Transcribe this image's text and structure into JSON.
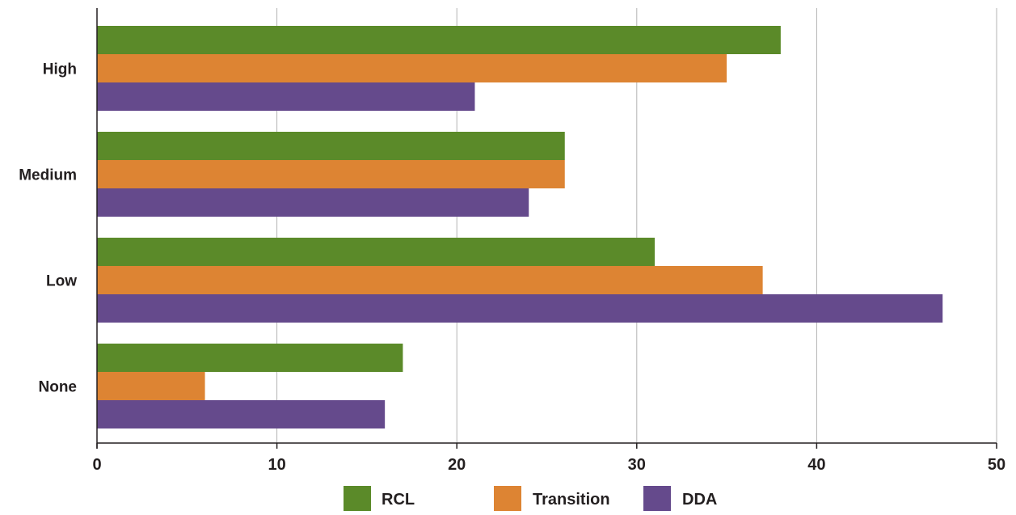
{
  "chart_data": {
    "type": "bar",
    "orientation": "horizontal",
    "categories": [
      "High",
      "Medium",
      "Low",
      "None"
    ],
    "series": [
      {
        "name": "RCL",
        "color": "#5b8a29",
        "values": [
          38,
          26,
          31,
          17
        ]
      },
      {
        "name": "Transition",
        "color": "#dd8433",
        "values": [
          35,
          26,
          37,
          6
        ]
      },
      {
        "name": "DDA",
        "color": "#654a8c",
        "values": [
          21,
          24,
          47,
          16
        ]
      }
    ],
    "xlim": [
      0,
      50
    ],
    "xticks": [
      "0",
      "10",
      "20",
      "30",
      "40",
      "50"
    ],
    "grid": "vertical",
    "legend": "bottom-center",
    "title": "",
    "xlabel": "",
    "ylabel": ""
  }
}
